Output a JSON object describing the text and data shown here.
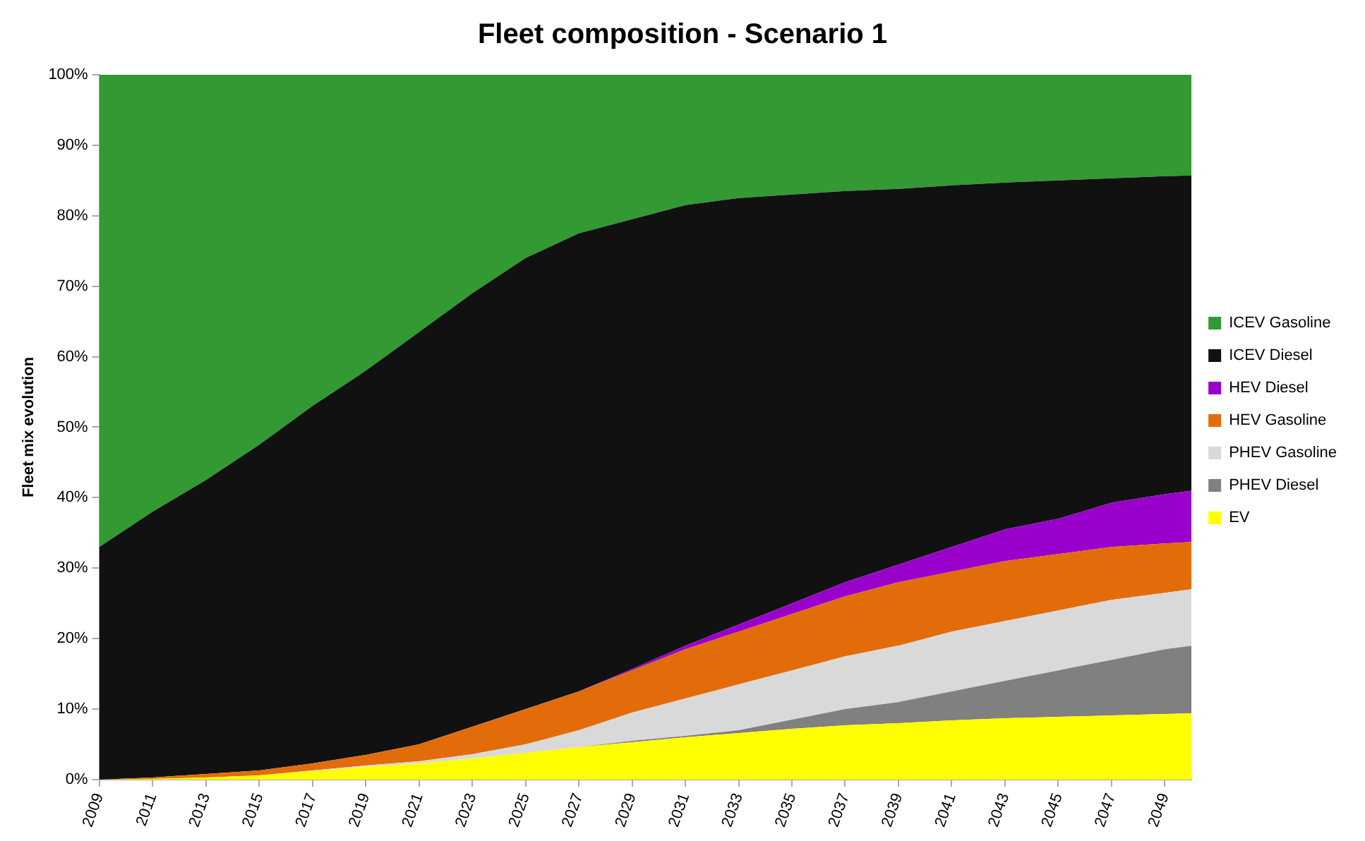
{
  "chart_data": {
    "type": "area",
    "title": "Fleet composition - Scenario 1",
    "ylabel": "Fleet mix evolution",
    "x": [
      2009,
      2011,
      2013,
      2015,
      2017,
      2019,
      2021,
      2023,
      2025,
      2027,
      2029,
      2031,
      2033,
      2035,
      2037,
      2039,
      2041,
      2043,
      2045,
      2047,
      2049,
      2050
    ],
    "xlim": [
      2009,
      2050
    ],
    "xticks": [
      2009,
      2011,
      2013,
      2015,
      2017,
      2019,
      2021,
      2023,
      2025,
      2027,
      2029,
      2031,
      2033,
      2035,
      2037,
      2039,
      2041,
      2043,
      2045,
      2047,
      2049
    ],
    "ylim": [
      0,
      100
    ],
    "yticks": [
      {
        "value": 0,
        "label": "0%"
      },
      {
        "value": 10,
        "label": "10%"
      },
      {
        "value": 20,
        "label": "20%"
      },
      {
        "value": 30,
        "label": "30%"
      },
      {
        "value": 40,
        "label": "40%"
      },
      {
        "value": 50,
        "label": "50%"
      },
      {
        "value": 60,
        "label": "60%"
      },
      {
        "value": 70,
        "label": "70%"
      },
      {
        "value": 80,
        "label": "80%"
      },
      {
        "value": 90,
        "label": "90%"
      },
      {
        "value": 100,
        "label": "100%"
      }
    ],
    "stacked": true,
    "grid": false,
    "legend": "right",
    "series": [
      {
        "name": "EV",
        "color": "#ffff00",
        "values": [
          0,
          0.1,
          0.3,
          0.6,
          1.2,
          1.8,
          2.3,
          3,
          3.8,
          4.6,
          5.3,
          6,
          6.6,
          7.2,
          7.7,
          8,
          8.4,
          8.7,
          8.9,
          9.1,
          9.3,
          9.4
        ]
      },
      {
        "name": "PHEV Diesel",
        "color": "#808080",
        "values": [
          0,
          0,
          0,
          0,
          0,
          0,
          0,
          0,
          0,
          0,
          0.2,
          0.2,
          0.4,
          1.3,
          2.3,
          3,
          4.1,
          5.3,
          6.6,
          7.9,
          9.2,
          9.6
        ]
      },
      {
        "name": "PHEV Gasoline",
        "color": "#d9d9d9",
        "values": [
          0,
          0,
          0,
          0,
          0.1,
          0.2,
          0.3,
          0.6,
          1.2,
          2.4,
          4,
          5.3,
          6.5,
          7,
          7.5,
          8,
          8.5,
          8.5,
          8.5,
          8.5,
          8,
          8
        ]
      },
      {
        "name": "HEV Gasoline",
        "color": "#e36c0a",
        "values": [
          0,
          0.2,
          0.5,
          0.7,
          1,
          1.5,
          2.4,
          3.9,
          5,
          5.5,
          6,
          7,
          7.5,
          8,
          8.5,
          9,
          8.5,
          8.5,
          8,
          7.5,
          7,
          6.7
        ]
      },
      {
        "name": "HEV Diesel",
        "color": "#9900cc",
        "values": [
          0,
          0,
          0,
          0,
          0,
          0,
          0,
          0,
          0,
          0,
          0.2,
          0.5,
          1,
          1.5,
          2,
          2.5,
          3.5,
          4.5,
          5,
          6.3,
          7,
          7.3
        ]
      },
      {
        "name": "ICEV Diesel",
        "color": "#111111",
        "values": [
          33,
          37.7,
          41.7,
          46.2,
          50.7,
          54.5,
          58.5,
          61.5,
          64,
          65,
          63.8,
          62.5,
          60.5,
          58,
          55.5,
          53.3,
          51.3,
          49.2,
          48,
          46,
          45.1,
          44.7
        ]
      },
      {
        "name": "ICEV Gasoline",
        "color": "#339933",
        "values": [
          67,
          62,
          57.5,
          52.5,
          47,
          42,
          36.5,
          31,
          26,
          22.5,
          20.5,
          18.5,
          17.5,
          17,
          16.5,
          16.2,
          15.7,
          15.3,
          15,
          14.7,
          14.4,
          14.3
        ]
      }
    ]
  }
}
